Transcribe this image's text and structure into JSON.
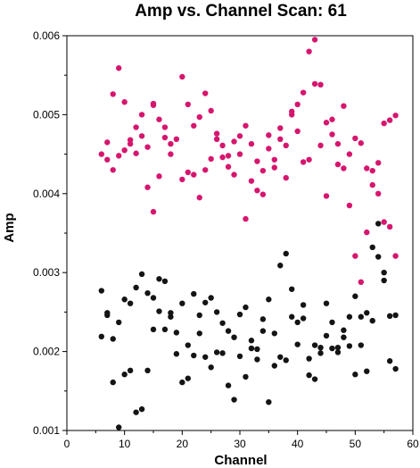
{
  "chart_data": {
    "type": "scatter",
    "title": "Amp vs. Channel Scan: 61",
    "xlabel": "Channel",
    "ylabel": "Amp",
    "xlim": [
      0,
      60
    ],
    "ylim": [
      0.001,
      0.006
    ],
    "xticks": [
      "0",
      "10",
      "20",
      "30",
      "40",
      "50",
      "60"
    ],
    "yticks": [
      "0.001",
      "0.002",
      "0.003",
      "0.004",
      "0.005",
      "0.006"
    ],
    "legend": "none",
    "grid": false,
    "series": [
      {
        "color": "#d6166e",
        "points": [
          [
            6,
            0.0045
          ],
          [
            7,
            0.00465
          ],
          [
            7,
            0.00443
          ],
          [
            8,
            0.0043
          ],
          [
            8,
            0.00526
          ],
          [
            9,
            0.00559
          ],
          [
            9,
            0.00448
          ],
          [
            10,
            0.00516
          ],
          [
            10,
            0.00455
          ],
          [
            11,
            0.00468
          ],
          [
            11,
            0.00463
          ],
          [
            12,
            0.00484
          ],
          [
            12,
            0.00451
          ],
          [
            13,
            0.005
          ],
          [
            13,
            0.00473
          ],
          [
            14,
            0.00459
          ],
          [
            14,
            0.00408
          ],
          [
            15,
            0.00512
          ],
          [
            15,
            0.00514
          ],
          [
            15,
            0.00377
          ],
          [
            16,
            0.00494
          ],
          [
            16,
            0.00422
          ],
          [
            17,
            0.00471
          ],
          [
            17,
            0.00484
          ],
          [
            18,
            0.00463
          ],
          [
            18,
            0.0045
          ],
          [
            19,
            0.00469
          ],
          [
            20,
            0.00548
          ],
          [
            20,
            0.00418
          ],
          [
            21,
            0.00513
          ],
          [
            21,
            0.00427
          ],
          [
            22,
            0.00486
          ],
          [
            22,
            0.00424
          ],
          [
            23,
            0.00395
          ],
          [
            23,
            0.00497
          ],
          [
            24,
            0.00527
          ],
          [
            24,
            0.0043
          ],
          [
            25,
            0.00505
          ],
          [
            25,
            0.00444
          ],
          [
            26,
            0.00476
          ],
          [
            26,
            0.00469
          ],
          [
            27,
            0.00446
          ],
          [
            27,
            0.00461
          ],
          [
            28,
            0.00448
          ],
          [
            28,
            0.00434
          ],
          [
            29,
            0.00466
          ],
          [
            29,
            0.00424
          ],
          [
            30,
            0.00473
          ],
          [
            30,
            0.0045
          ],
          [
            31,
            0.00486
          ],
          [
            31,
            0.00368
          ],
          [
            32,
            0.00416
          ],
          [
            32,
            0.00463
          ],
          [
            33,
            0.00404
          ],
          [
            33,
            0.00441
          ],
          [
            34,
            0.00429
          ],
          [
            34,
            0.00399
          ],
          [
            35,
            0.00474
          ],
          [
            35,
            0.00457
          ],
          [
            36,
            0.00433
          ],
          [
            36,
            0.00443
          ],
          [
            37,
            0.00469
          ],
          [
            37,
            0.00483
          ],
          [
            38,
            0.00461
          ],
          [
            38,
            0.0042
          ],
          [
            39,
            0.00504
          ],
          [
            39,
            0.005
          ],
          [
            40,
            0.00513
          ],
          [
            40,
            0.00479
          ],
          [
            41,
            0.00528
          ],
          [
            41,
            0.0044
          ],
          [
            42,
            0.0058
          ],
          [
            42,
            0.00443
          ],
          [
            43,
            0.00595
          ],
          [
            43,
            0.00539
          ],
          [
            44,
            0.00538
          ],
          [
            44,
            0.00461
          ],
          [
            45,
            0.0049
          ],
          [
            45,
            0.00397
          ],
          [
            46,
            0.00494
          ],
          [
            46,
            0.00475
          ],
          [
            47,
            0.00463
          ],
          [
            47,
            0.00437
          ],
          [
            48,
            0.00511
          ],
          [
            48,
            0.00432
          ],
          [
            49,
            0.0045
          ],
          [
            49,
            0.00385
          ],
          [
            50,
            0.0047
          ],
          [
            50,
            0.00321
          ],
          [
            51,
            0.00288
          ],
          [
            51,
            0.00464
          ],
          [
            52,
            0.00432
          ],
          [
            52,
            0.00351
          ],
          [
            53,
            0.00429
          ],
          [
            53,
            0.00411
          ],
          [
            54,
            0.00439
          ],
          [
            54,
            0.004
          ],
          [
            55,
            0.00489
          ],
          [
            55,
            0.00364
          ],
          [
            56,
            0.00493
          ],
          [
            56,
            0.00358
          ],
          [
            57,
            0.00499
          ],
          [
            57,
            0.00321
          ]
        ]
      },
      {
        "color": "#141414",
        "points": [
          [
            6,
            0.00277
          ],
          [
            6,
            0.00219
          ],
          [
            7,
            0.00249
          ],
          [
            7,
            0.00246
          ],
          [
            8,
            0.00216
          ],
          [
            8,
            0.00161
          ],
          [
            9,
            0.00237
          ],
          [
            9,
            0.00104
          ],
          [
            10,
            0.00266
          ],
          [
            10,
            0.00171
          ],
          [
            11,
            0.00261
          ],
          [
            11,
            0.00176
          ],
          [
            12,
            0.00281
          ],
          [
            12,
            0.00123
          ],
          [
            13,
            0.00298
          ],
          [
            13,
            0.00127
          ],
          [
            14,
            0.00274
          ],
          [
            14,
            0.00176
          ],
          [
            15,
            0.00268
          ],
          [
            15,
            0.00228
          ],
          [
            16,
            0.00292
          ],
          [
            16,
            0.00251
          ],
          [
            17,
            0.00289
          ],
          [
            17,
            0.00228
          ],
          [
            18,
            0.00249
          ],
          [
            18,
            0.00244
          ],
          [
            19,
            0.00224
          ],
          [
            19,
            0.00197
          ],
          [
            20,
            0.00161
          ],
          [
            20,
            0.00261
          ],
          [
            21,
            0.00208
          ],
          [
            21,
            0.00166
          ],
          [
            22,
            0.00273
          ],
          [
            22,
            0.00195
          ],
          [
            23,
            0.00223
          ],
          [
            23,
            0.00246
          ],
          [
            24,
            0.00262
          ],
          [
            24,
            0.00193
          ],
          [
            25,
            0.00268
          ],
          [
            25,
            0.0018
          ],
          [
            26,
            0.0025
          ],
          [
            26,
            0.00199
          ],
          [
            27,
            0.00198
          ],
          [
            27,
            0.00236
          ],
          [
            28,
            0.00226
          ],
          [
            28,
            0.00157
          ],
          [
            29,
            0.00218
          ],
          [
            29,
            0.00139
          ],
          [
            30,
            0.00247
          ],
          [
            30,
            0.00194
          ],
          [
            31,
            0.00168
          ],
          [
            31,
            0.00256
          ],
          [
            32,
            0.00214
          ],
          [
            32,
            0.00204
          ],
          [
            33,
            0.0019
          ],
          [
            33,
            0.00203
          ],
          [
            34,
            0.00226
          ],
          [
            34,
            0.00241
          ],
          [
            35,
            0.00266
          ],
          [
            35,
            0.00136
          ],
          [
            36,
            0.00182
          ],
          [
            36,
            0.00223
          ],
          [
            37,
            0.00193
          ],
          [
            37,
            0.00309
          ],
          [
            38,
            0.00324
          ],
          [
            38,
            0.00189
          ],
          [
            39,
            0.00244
          ],
          [
            39,
            0.00279
          ],
          [
            40,
            0.00237
          ],
          [
            40,
            0.00209
          ],
          [
            41,
            0.00259
          ],
          [
            41,
            0.00242
          ],
          [
            42,
            0.0017
          ],
          [
            42,
            0.00191
          ],
          [
            43,
            0.00208
          ],
          [
            43,
            0.00165
          ],
          [
            44,
            0.00198
          ],
          [
            44,
            0.00205
          ],
          [
            45,
            0.00261
          ],
          [
            45,
            0.0022
          ],
          [
            46,
            0.00204
          ],
          [
            46,
            0.00237
          ],
          [
            47,
            0.00199
          ],
          [
            47,
            0.00205
          ],
          [
            48,
            0.00227
          ],
          [
            48,
            0.00218
          ],
          [
            49,
            0.00244
          ],
          [
            49,
            0.00207
          ],
          [
            50,
            0.0027
          ],
          [
            50,
            0.00171
          ],
          [
            51,
            0.00244
          ],
          [
            51,
            0.00208
          ],
          [
            52,
            0.00249
          ],
          [
            52,
            0.00175
          ],
          [
            53,
            0.00332
          ],
          [
            53,
            0.00239
          ],
          [
            54,
            0.00362
          ],
          [
            54,
            0.0032
          ],
          [
            55,
            0.003
          ],
          [
            55,
            0.0029
          ],
          [
            56,
            0.00245
          ],
          [
            56,
            0.00188
          ],
          [
            57,
            0.00246
          ],
          [
            57,
            0.00178
          ]
        ]
      }
    ]
  }
}
